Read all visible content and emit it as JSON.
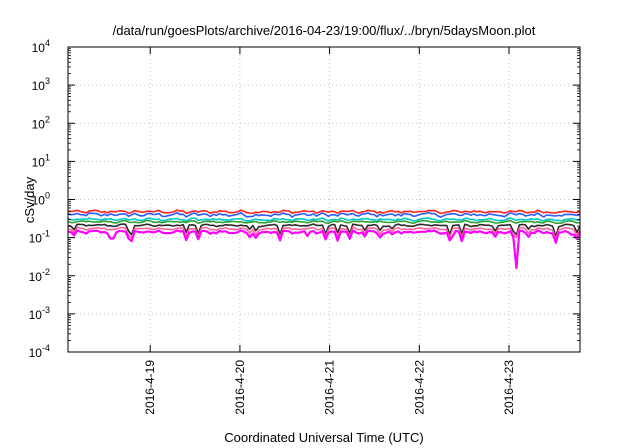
{
  "chart_data": {
    "type": "line",
    "title": "/data/run/goesPlots/archive/2016-04-23/19:00/flux/../bryn/5daysMoon.plot",
    "xlabel": "Coordinated Universal Time (UTC)",
    "ylabel": "cSv/day",
    "yscale": "log",
    "ylim": [
      0.0001,
      10000
    ],
    "y_ticks": [
      {
        "value": 0.0001,
        "base": "10",
        "exp": "-4"
      },
      {
        "value": 0.001,
        "base": "10",
        "exp": "-3"
      },
      {
        "value": 0.01,
        "base": "10",
        "exp": "-2"
      },
      {
        "value": 0.1,
        "base": "10",
        "exp": "-1"
      },
      {
        "value": 1,
        "base": "10",
        "exp": "0"
      },
      {
        "value": 10,
        "base": "10",
        "exp": "1"
      },
      {
        "value": 100,
        "base": "10",
        "exp": "2"
      },
      {
        "value": 1000,
        "base": "10",
        "exp": "3"
      },
      {
        "value": 10000,
        "base": "10",
        "exp": "4"
      }
    ],
    "xlim": [
      "2016-04-18 02:00",
      "2016-04-23 19:00"
    ],
    "x_ticks": [
      {
        "value": "2016-04-19 00:00",
        "label": "2016-4-19"
      },
      {
        "value": "2016-04-20 00:00",
        "label": "2016-4-20"
      },
      {
        "value": "2016-04-21 00:00",
        "label": "2016-4-21"
      },
      {
        "value": "2016-04-22 00:00",
        "label": "2016-4-22"
      },
      {
        "value": "2016-04-23 00:00",
        "label": "2016-4-23"
      }
    ],
    "grid": true,
    "series": [
      {
        "color": "#ff2020",
        "level": 0.48,
        "spread": 0.07,
        "dips": []
      },
      {
        "color": "#2a5cff",
        "level": 0.4,
        "spread": 0.1,
        "dips": []
      },
      {
        "color": "#00c8c8",
        "level": 0.3,
        "spread": 0.06,
        "dips": []
      },
      {
        "color": "#30a030",
        "level": 0.26,
        "spread": 0.05,
        "dips": []
      },
      {
        "color": "#2a2a2a",
        "level": 0.21,
        "spread": 0.05,
        "dips": []
      },
      {
        "color": "#ff60a0",
        "level": 0.17,
        "spread": 0.06,
        "dips": []
      },
      {
        "color": "#ff00ff",
        "level": 0.14,
        "spread": 0.08,
        "dips": [
          {
            "x": "2016-04-18 14:00",
            "y": 0.095
          },
          {
            "x": "2016-04-20 18:00",
            "y": 0.11
          },
          {
            "x": "2016-04-22 09:00",
            "y": 0.11
          },
          {
            "x": "2016-04-23 02:00",
            "y": 0.016
          },
          {
            "x": "2016-04-23 17:00",
            "y": 0.12
          }
        ]
      }
    ]
  }
}
